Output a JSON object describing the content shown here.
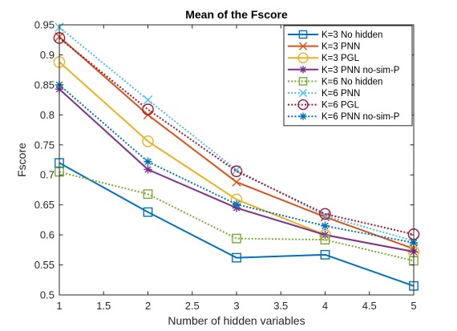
{
  "chart_data": {
    "type": "line",
    "title": "Mean of the Fscore",
    "xlabel": "Number of hidden variables",
    "ylabel": "Fscore",
    "x": [
      1,
      2,
      3,
      4,
      5
    ],
    "xlim": [
      1,
      5
    ],
    "ylim": [
      0.5,
      0.95
    ],
    "xticks": [
      "1",
      "1.5",
      "2",
      "2.5",
      "3",
      "3.5",
      "4",
      "4.5",
      "5"
    ],
    "yticks": [
      "0.5",
      "0.55",
      "0.6",
      "0.65",
      "0.7",
      "0.75",
      "0.8",
      "0.85",
      "0.9",
      "0.95"
    ],
    "grid": false,
    "legend_position": "top-right",
    "series": [
      {
        "name": "K=3 No hidden",
        "values": [
          0.72,
          0.638,
          0.562,
          0.567,
          0.515
        ],
        "color": "#0072BD",
        "marker": "square",
        "style": "solid"
      },
      {
        "name": "K=3 PNN",
        "values": [
          0.93,
          0.8,
          0.688,
          0.63,
          0.577
        ],
        "color": "#D95319",
        "marker": "x",
        "style": "solid"
      },
      {
        "name": "K=3 PGL",
        "values": [
          0.888,
          0.756,
          0.659,
          0.6,
          0.572
        ],
        "color": "#EDB120",
        "marker": "circle",
        "style": "solid"
      },
      {
        "name": "K=3 PNN no-sim-P",
        "values": [
          0.843,
          0.709,
          0.645,
          0.6,
          0.572
        ],
        "color": "#7E2F8E",
        "marker": "asterisk",
        "style": "solid"
      },
      {
        "name": "K=6 No hidden",
        "values": [
          0.705,
          0.668,
          0.594,
          0.592,
          0.557
        ],
        "color": "#77AC30",
        "marker": "square",
        "style": "dotted"
      },
      {
        "name": "K=6 PNN",
        "values": [
          0.946,
          0.825,
          0.708,
          0.632,
          0.59
        ],
        "color": "#4DBEEE",
        "marker": "x",
        "style": "dotted"
      },
      {
        "name": "K=6 PGL",
        "values": [
          0.928,
          0.809,
          0.706,
          0.635,
          0.601
        ],
        "color": "#A2142F",
        "marker": "circle",
        "style": "dotted"
      },
      {
        "name": "K=6 PNN no-sim-P",
        "values": [
          0.85,
          0.722,
          0.651,
          0.615,
          0.587
        ],
        "color": "#0072BD",
        "marker": "asterisk",
        "style": "dotted"
      }
    ]
  }
}
